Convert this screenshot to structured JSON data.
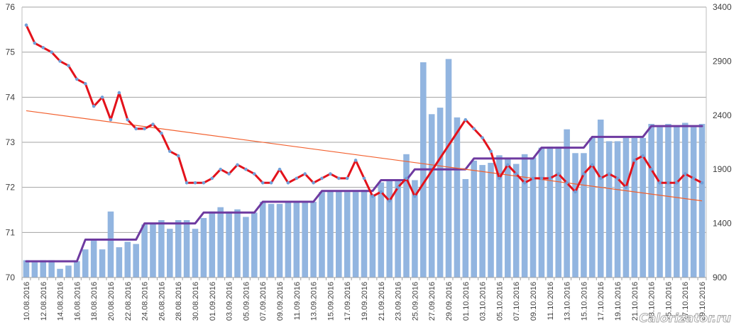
{
  "chart_data": {
    "type": "bar",
    "x_tick_labels": [
      "10.08.2016",
      "12.08.2016",
      "14.08.2016",
      "16.08.2016",
      "18.08.2016",
      "20.08.2016",
      "22.08.2016",
      "24.08.2016",
      "26.08.2016",
      "28.08.2016",
      "30.08.2016",
      "01.09.2016",
      "03.09.2016",
      "05.09.2016",
      "07.09.2016",
      "09.09.2016",
      "11.09.2016",
      "13.09.2016",
      "15.09.2016",
      "17.09.2016",
      "19.09.2016",
      "21.09.2016",
      "23.09.2016",
      "25.09.2016",
      "27.09.2016",
      "29.09.2016",
      "01.10.2016",
      "03.10.2016",
      "05.10.2016",
      "07.10.2016",
      "09.10.2016",
      "11.10.2016",
      "13.10.2016",
      "15.10.2016",
      "17.10.2016",
      "19.10.2016",
      "21.10.2016",
      "23.10.2016",
      "25.10.2016",
      "27.10.2016",
      "29.10.2016"
    ],
    "y_left": {
      "range": [
        70,
        76
      ],
      "ticks": [
        70,
        71,
        72,
        73,
        74,
        75,
        76
      ]
    },
    "y_right": {
      "range": [
        900,
        3400
      ],
      "ticks": [
        900,
        1400,
        1900,
        2400,
        2900,
        3400
      ]
    },
    "series": [
      {
        "type": "bar",
        "axis": "right",
        "values": [
          1060,
          1040,
          1060,
          1060,
          980,
          1010,
          1050,
          1160,
          1240,
          1160,
          1510,
          1180,
          1230,
          1210,
          1390,
          1400,
          1430,
          1350,
          1430,
          1430,
          1350,
          1450,
          1510,
          1550,
          1510,
          1530,
          1460,
          1500,
          1600,
          1580,
          1580,
          1600,
          1600,
          1600,
          1600,
          1690,
          1700,
          1700,
          1690,
          1690,
          1710,
          1670,
          1780,
          1790,
          1800,
          2040,
          1800,
          2890,
          2410,
          2470,
          2920,
          2380,
          1810,
          1980,
          1940,
          1960,
          2030,
          2000,
          1950,
          2040,
          2010,
          2100,
          2110,
          2110,
          2270,
          2050,
          2050,
          2190,
          2360,
          2160,
          2160,
          2190,
          2190,
          2190,
          2320,
          2290,
          2320,
          2300,
          2330,
          2290,
          2320
        ]
      },
      {
        "type": "line",
        "axis": "left",
        "markers": true,
        "values": [
          75.6,
          75.2,
          75.1,
          75.0,
          74.8,
          74.7,
          74.4,
          74.3,
          73.8,
          74.0,
          73.5,
          74.1,
          73.5,
          73.3,
          73.3,
          73.4,
          73.2,
          72.8,
          72.7,
          72.1,
          72.1,
          72.1,
          72.2,
          72.4,
          72.3,
          72.5,
          72.4,
          72.3,
          72.1,
          72.1,
          72.4,
          72.1,
          72.2,
          72.3,
          72.1,
          72.2,
          72.3,
          72.2,
          72.2,
          72.6,
          72.2,
          71.8,
          71.9,
          71.7,
          72.0,
          72.2,
          71.8,
          null,
          null,
          null,
          null,
          null,
          73.5,
          73.3,
          73.1,
          72.8,
          72.2,
          72.5,
          72.3,
          72.1,
          72.2,
          72.2,
          72.2,
          72.3,
          72.1,
          71.9,
          72.3,
          72.5,
          72.2,
          72.3,
          72.2,
          72.0,
          72.6,
          72.7,
          72.4,
          72.1,
          72.1,
          72.1,
          72.3,
          72.2,
          72.1
        ]
      },
      {
        "type": "line",
        "axis": "right",
        "values": [
          1050,
          1050,
          1050,
          1050,
          1050,
          1050,
          1050,
          1250,
          1250,
          1250,
          1250,
          1250,
          1250,
          1250,
          1400,
          1400,
          1400,
          1400,
          1400,
          1400,
          1400,
          1500,
          1500,
          1500,
          1500,
          1500,
          1500,
          1500,
          1600,
          1600,
          1600,
          1600,
          1600,
          1600,
          1600,
          1700,
          1700,
          1700,
          1700,
          1700,
          1700,
          1700,
          1800,
          1800,
          1800,
          1800,
          1900,
          1900,
          1900,
          1900,
          1900,
          1900,
          1900,
          2000,
          2000,
          2000,
          2000,
          2000,
          2000,
          2000,
          2000,
          2100,
          2100,
          2100,
          2100,
          2100,
          2100,
          2200,
          2200,
          2200,
          2200,
          2200,
          2200,
          2200,
          2300,
          2300,
          2300,
          2300,
          2300,
          2300,
          2300
        ]
      }
    ],
    "trendline": {
      "axis": "left",
      "from": 73.7,
      "to": 71.7
    },
    "grid": true,
    "legend": false,
    "colors": {
      "bars": "#92b5e0",
      "red_line": "#e3121b",
      "markers": "#6f9fd8",
      "purple_line": "#6e3aa0",
      "trend_line": "#f2602e",
      "grid": "#a3a3a3",
      "axis": "#bfbfbf"
    }
  },
  "watermark": "Calorizator.ru"
}
